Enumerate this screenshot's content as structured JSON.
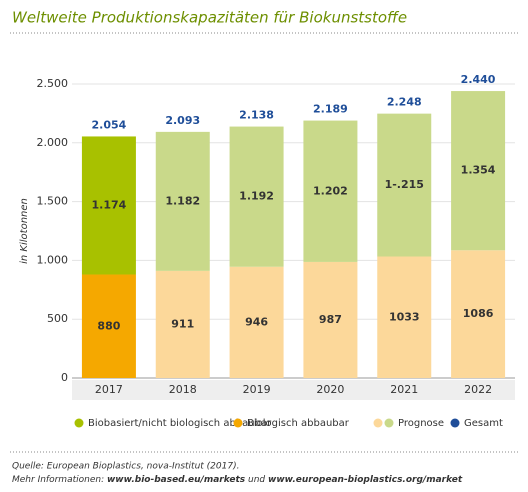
{
  "chart_data": {
    "type": "stacked_bar",
    "title": "Weltweite Produktionskapazitäten für Biokunststoffe",
    "y_label": "in Kilotonnen",
    "categories": [
      "2017",
      "2018",
      "2019",
      "2020",
      "2021",
      "2022"
    ],
    "series": [
      {
        "name": "Biologisch abbaubar",
        "color": "#f5a800",
        "colors": [
          "#f5a800",
          "#fcd89a",
          "#fcd89a",
          "#fcd89a",
          "#fcd89a",
          "#fcd89a"
        ],
        "values": [
          880,
          911,
          946,
          987,
          1033,
          1086
        ]
      },
      {
        "name": "Biobasiert/nicht biologisch abbaubar",
        "color": "#a8c100",
        "colors": [
          "#a8c100",
          "#c9d98a",
          "#c9d98a",
          "#c9d98a",
          "#c9d98a",
          "#c9d98a"
        ],
        "values": [
          1174,
          1182,
          1192,
          1202,
          1215,
          1354
        ],
        "value_labels": [
          "1.174",
          "1.182",
          "1.192",
          "1.202",
          "1-.215",
          "1.354"
        ]
      }
    ],
    "forecast": {
      "name": "Prognose",
      "colors": [
        "#fcd89a",
        "#c9d98a"
      ]
    },
    "totals": {
      "name": "Gesamt",
      "color": "#1f4e99",
      "values": [
        2054,
        2093,
        2138,
        2189,
        2248,
        2440
      ],
      "value_labels": [
        "2.054",
        "2.093",
        "2.138",
        "2.189",
        "2.248",
        "2.440"
      ]
    },
    "ylim": [
      0,
      2500
    ],
    "yticks": [
      0,
      500,
      {
        "value": 1000,
        "label": "1.000"
      },
      {
        "value": 1500,
        "label": "1.500"
      },
      {
        "value": 2000,
        "label": "2.000"
      },
      {
        "value": 2500,
        "label": "2.500"
      }
    ],
    "grid": true
  },
  "footer": {
    "source": "Quelle: European Bioplastics, nova-Institut (2017).",
    "more": [
      "Mehr Informationen: ",
      "www.bio-based.eu/markets",
      " und ",
      "www.european-bioplastics.org/market"
    ]
  }
}
